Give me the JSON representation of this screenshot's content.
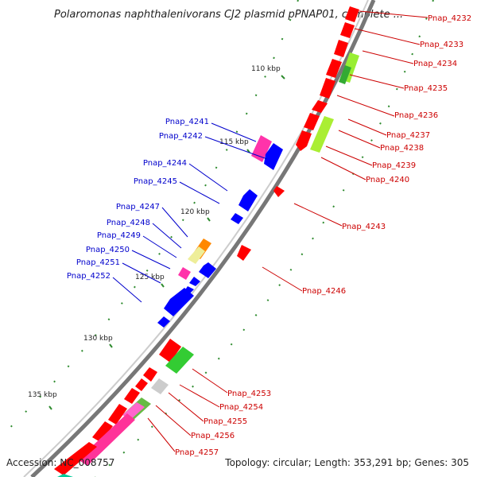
{
  "title": "Polaromonas naphthalenivorans CJ2 plasmid pPNAP01, complete ...",
  "footer": {
    "accession": "Accession: NC_008757",
    "summary": "Topology: circular; Length: 353,291 bp; Genes: 305"
  },
  "colors": {
    "forward_label": "#cc0000",
    "reverse_label": "#0000cc",
    "backbone": "#888888",
    "ticks": "#2e8b2e"
  },
  "kbp_markers": [
    "110 kbp",
    "115 kbp",
    "120 kbp",
    "125 kbp",
    "130 kbp",
    "135 kbp"
  ],
  "reverse_labels": [
    "Pnap_4241",
    "Pnap_4242",
    "Pnap_4244",
    "Pnap_4245",
    "Pnap_4247",
    "Pnap_4248",
    "Pnap_4249",
    "Pnap_4250",
    "Pnap_4251",
    "Pnap_4252"
  ],
  "forward_labels": [
    "Pnap_4232",
    "Pnap_4233",
    "Pnap_4234",
    "Pnap_4235",
    "Pnap_4236",
    "Pnap_4237",
    "Pnap_4238",
    "Pnap_4239",
    "Pnap_4240",
    "Pnap_4243",
    "Pnap_4246",
    "Pnap_4253",
    "Pnap_4254",
    "Pnap_4255",
    "Pnap_4256",
    "Pnap_4257"
  ]
}
